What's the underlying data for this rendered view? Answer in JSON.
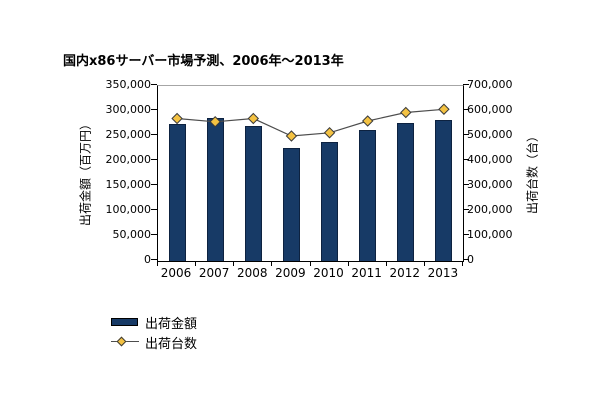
{
  "colors": {
    "background": "#ffffff",
    "bar_fill": "#173a66",
    "bar_border": "#0d2240",
    "line": "#4d4d4d",
    "marker_fill": "#f4c242",
    "marker_border": "#3a3a3a",
    "axis": "#000000",
    "plot_top_border": "#a6a6a6",
    "text": "#000000"
  },
  "chart_data": {
    "type": "bar",
    "subtype": "bar-line-combo-dual-axis",
    "title": "国内x86サーバー市場予測、2006年～2013年",
    "categories": [
      "2006",
      "2007",
      "2008",
      "2009",
      "2010",
      "2011",
      "2012",
      "2013"
    ],
    "series": [
      {
        "name": "出荷金額",
        "type": "bar",
        "axis": "left",
        "values": [
          274000,
          285000,
          269000,
          225000,
          237000,
          262000,
          276000,
          282000
        ]
      },
      {
        "name": "出荷台数",
        "type": "line",
        "axis": "right",
        "marker": "diamond",
        "values": [
          570000,
          557000,
          570000,
          500000,
          513000,
          560000,
          594000,
          607000
        ]
      }
    ],
    "left_axis": {
      "title": "出荷金額（百万円）",
      "min": 0,
      "max": 350000,
      "step": 50000,
      "tick_labels": [
        "0",
        "50,000",
        "100,000",
        "150,000",
        "200,000",
        "250,000",
        "300,000",
        "350,000"
      ]
    },
    "right_axis": {
      "title": "出荷台数（台）",
      "min": 0,
      "max": 700000,
      "step": 100000,
      "tick_labels": [
        "0",
        "100,000",
        "200,000",
        "300,000",
        "400,000",
        "500,000",
        "600,000",
        "700,000"
      ]
    },
    "grid": "top-border-only",
    "legend": {
      "position": "bottom-left",
      "items": [
        {
          "label": "出荷金額",
          "marker": "bar-swatch"
        },
        {
          "label": "出荷台数",
          "marker": "line-diamond"
        }
      ]
    }
  }
}
